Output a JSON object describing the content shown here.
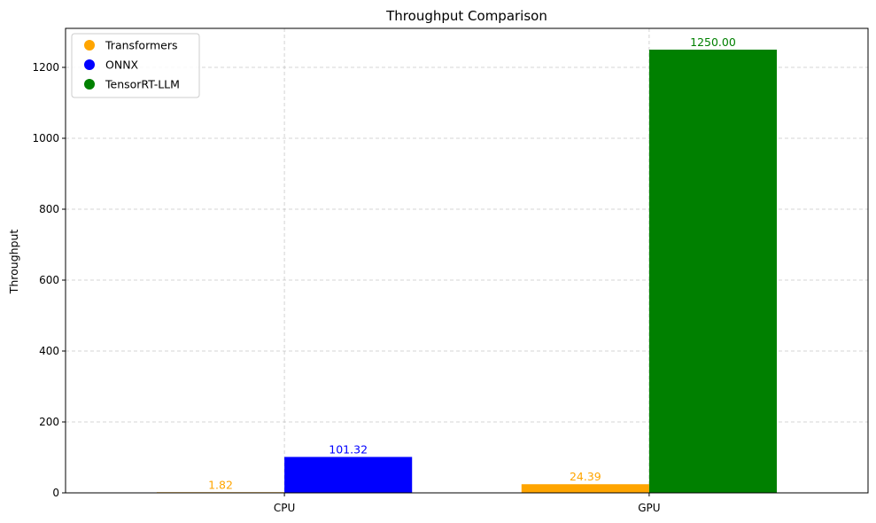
{
  "chart_data": {
    "type": "bar",
    "title": "Throughput Comparison",
    "xlabel": "",
    "ylabel": "Throughput",
    "categories": [
      "CPU",
      "GPU"
    ],
    "ylim": [
      0,
      1310
    ],
    "yticks": [
      0,
      200,
      400,
      600,
      800,
      1000,
      1200
    ],
    "grid": true,
    "legend_position": "top-left",
    "series": [
      {
        "name": "Transformers",
        "color": "#ffa500",
        "values": [
          1.82,
          24.39
        ],
        "labels": [
          "1.82",
          "24.39"
        ],
        "offsets": [
          -0.5,
          -0.5
        ]
      },
      {
        "name": "ONNX",
        "color": "#0000ff",
        "values": [
          101.32,
          null
        ],
        "labels": [
          "101.32",
          ""
        ],
        "offsets": [
          0.5,
          0.5
        ]
      },
      {
        "name": "TensorRT-LLM",
        "color": "#008000",
        "values": [
          null,
          1250.0
        ],
        "labels": [
          "",
          "1250.00"
        ],
        "offsets": [
          0.5,
          0.5
        ]
      }
    ]
  }
}
